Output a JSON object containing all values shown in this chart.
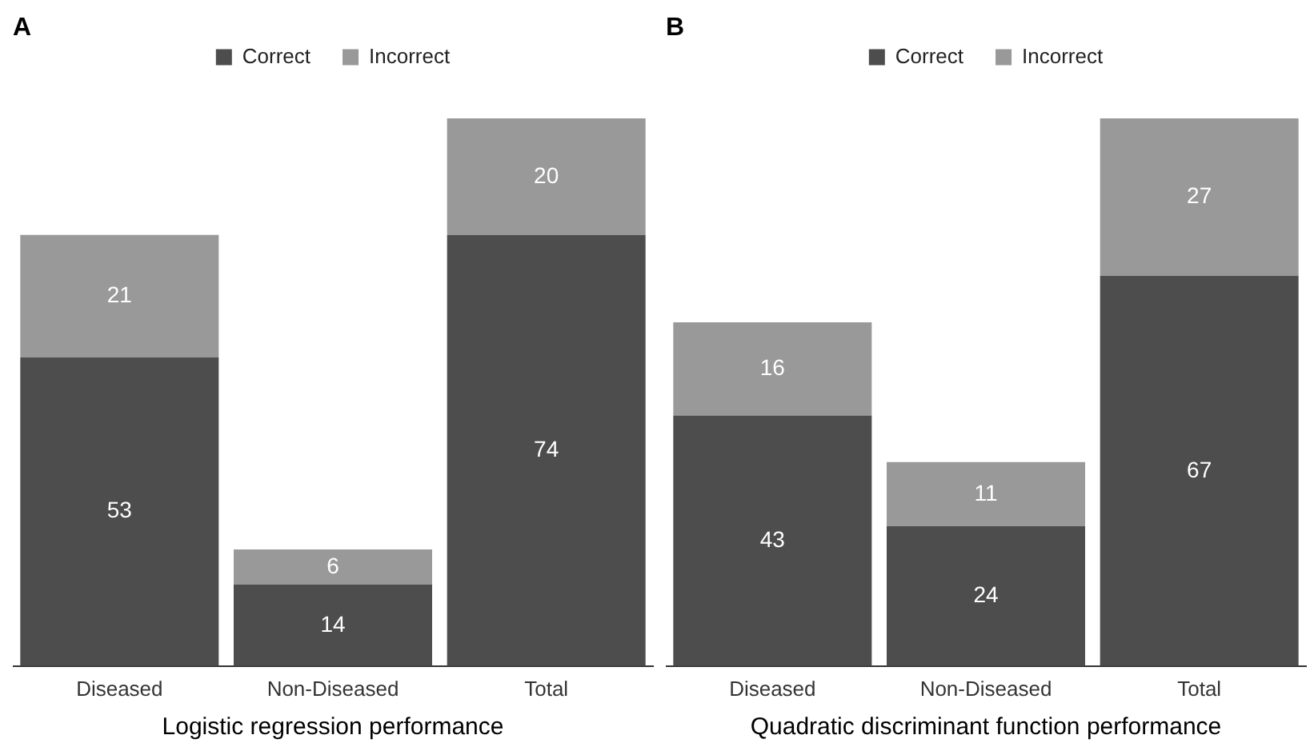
{
  "chart_data": [
    {
      "type": "bar",
      "title": "A",
      "xlabel": "Logistic regression performance",
      "categories": [
        "Diseased",
        "Non-Diseased",
        "Total"
      ],
      "stacked": true,
      "data_labels": true,
      "legend": "top",
      "grid": false,
      "tick_labels": "x",
      "series": [
        {
          "name": "Correct",
          "color": "#4d4d4d",
          "values": [
            53,
            14,
            74
          ]
        },
        {
          "name": "Incorrect",
          "color": "#999999",
          "values": [
            21,
            6,
            20
          ]
        }
      ]
    },
    {
      "type": "bar",
      "title": "B",
      "xlabel": "Quadratic discriminant function performance",
      "categories": [
        "Diseased",
        "Non-Diseased",
        "Total"
      ],
      "stacked": true,
      "data_labels": true,
      "legend": "top",
      "grid": false,
      "tick_labels": "x",
      "series": [
        {
          "name": "Correct",
          "color": "#4d4d4d",
          "values": [
            43,
            24,
            67
          ]
        },
        {
          "name": "Incorrect",
          "color": "#999999",
          "values": [
            16,
            11,
            27
          ]
        }
      ]
    }
  ]
}
